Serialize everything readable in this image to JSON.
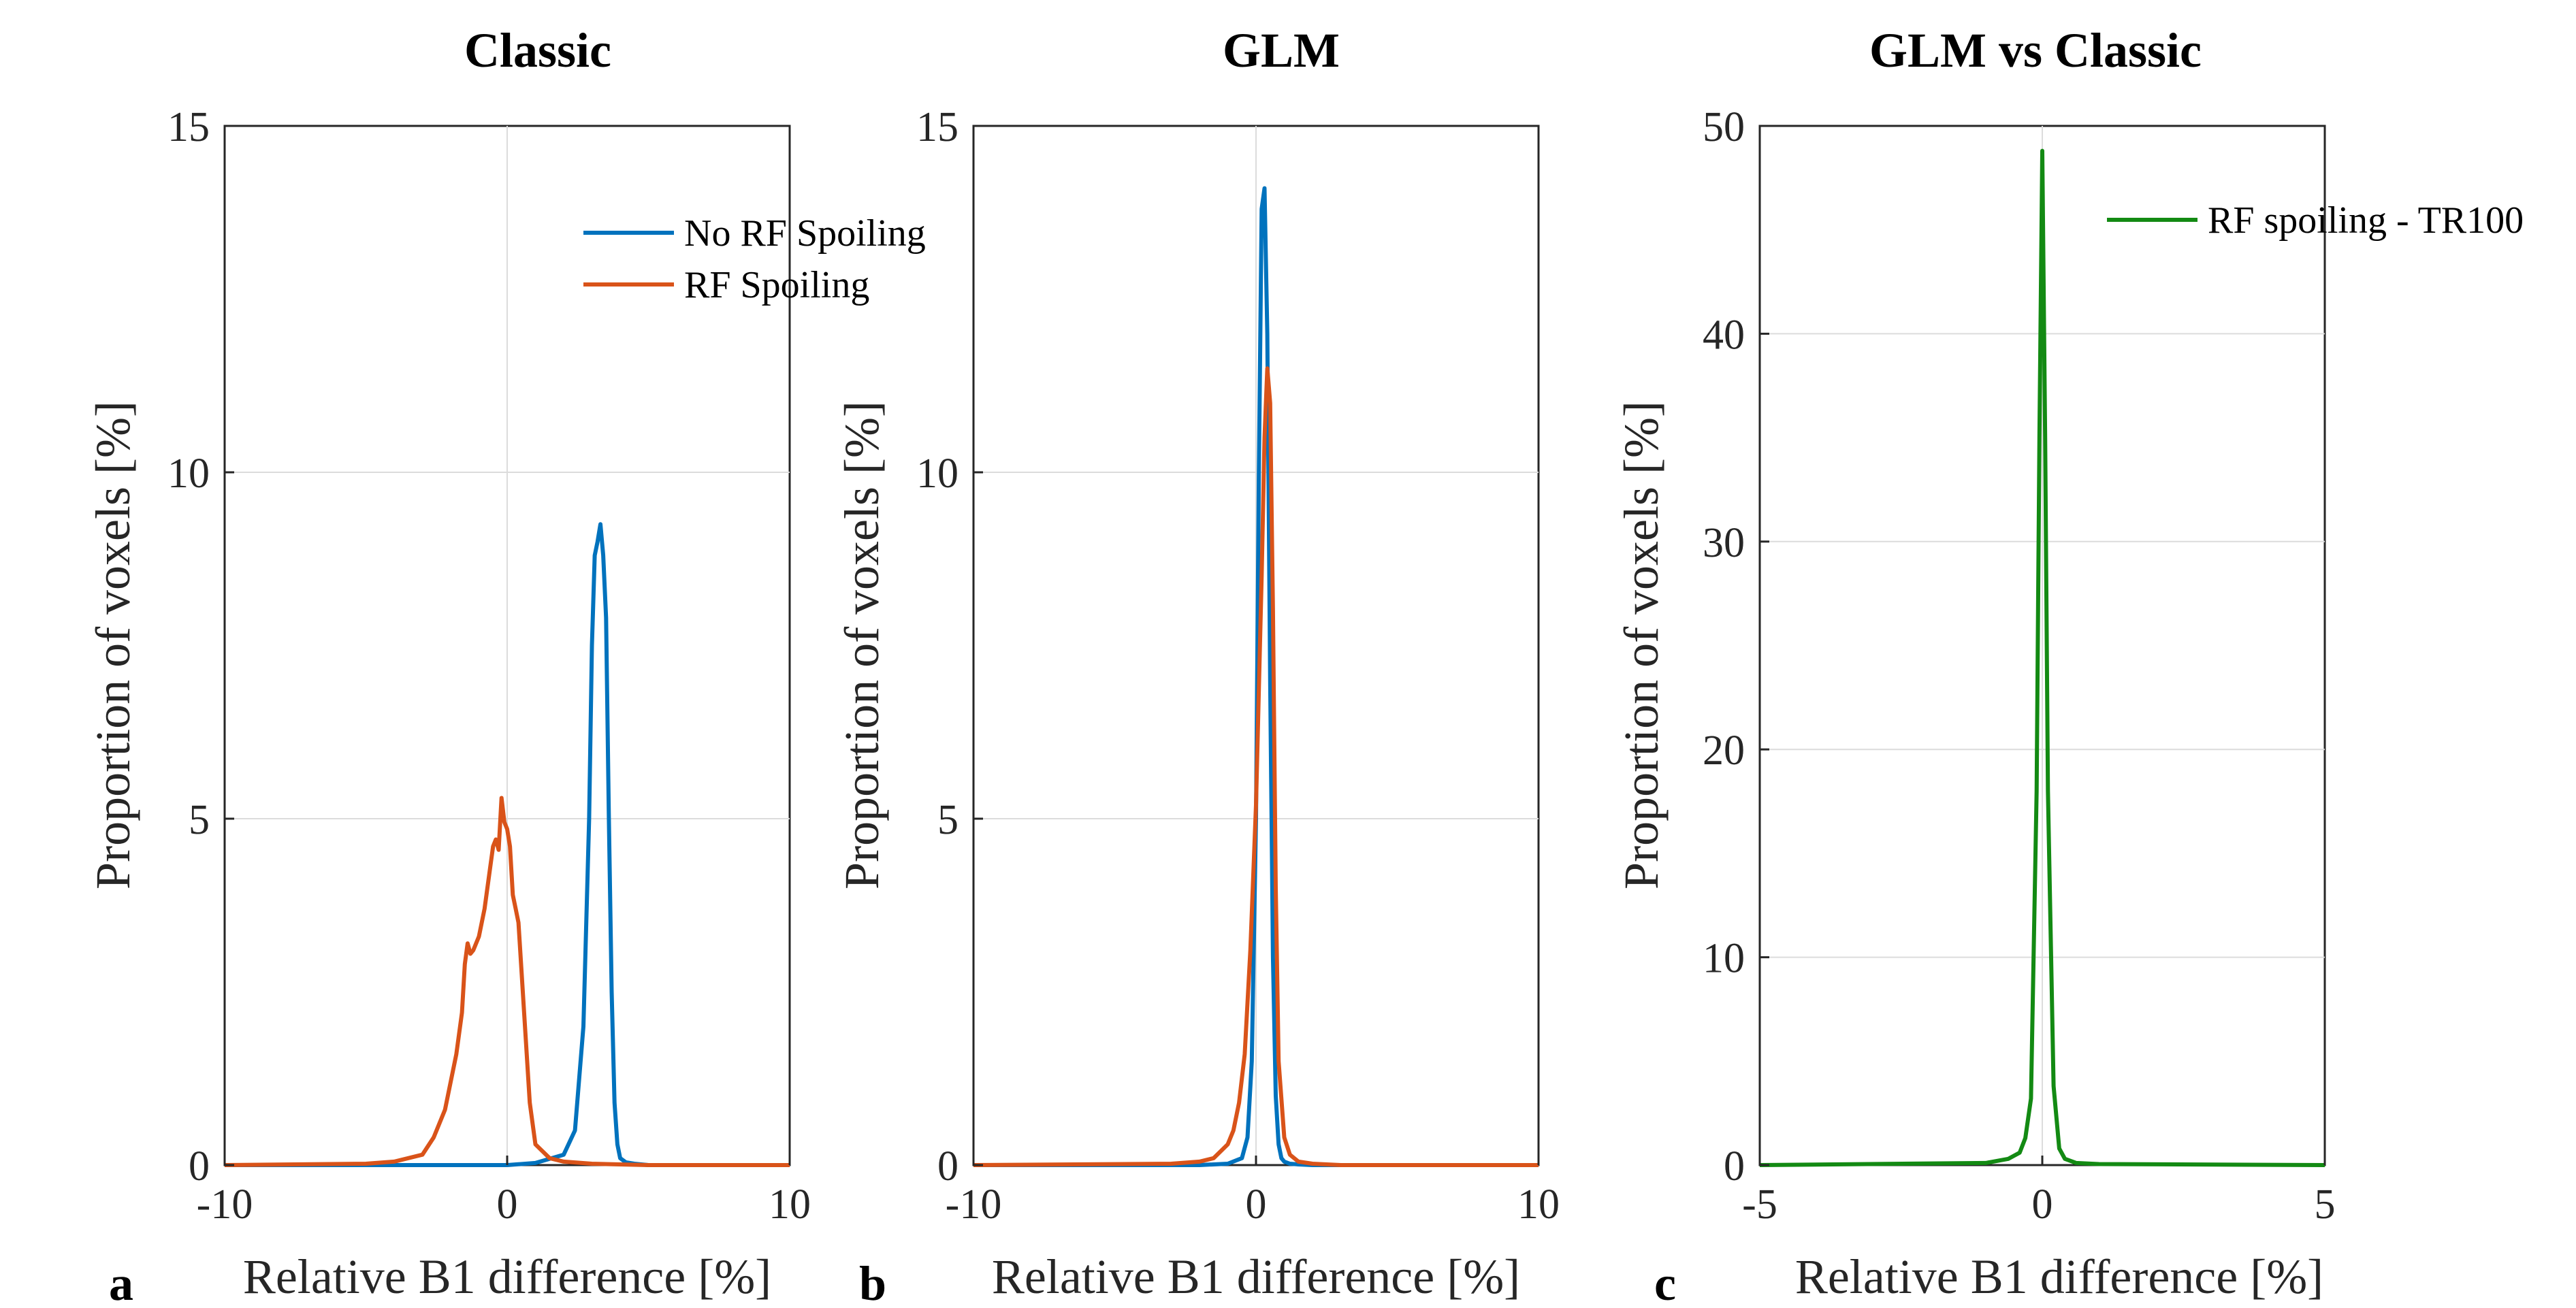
{
  "chart_data": [
    {
      "type": "line",
      "panel": "a",
      "title": "Classic",
      "xlabel": "Relative B1 difference [%]",
      "ylabel": "Proportion of voxels [%]",
      "xlim": [
        -10,
        10
      ],
      "ylim": [
        0,
        15
      ],
      "xticks": [
        -10,
        0,
        10
      ],
      "yticks": [
        0,
        5,
        10,
        15
      ],
      "xtick_labels": [
        "-10",
        "0",
        "10"
      ],
      "ytick_labels": [
        "0",
        "5",
        "10",
        "15"
      ],
      "grid": true,
      "legend": "top-right",
      "series": [
        {
          "name": "No RF Spoiling",
          "color": "#0072BD",
          "x": [
            -10,
            -2,
            0,
            1,
            2,
            2.4,
            2.7,
            2.9,
            3.0,
            3.1,
            3.2,
            3.3,
            3.4,
            3.5,
            3.6,
            3.7,
            3.8,
            3.9,
            4.0,
            4.2,
            4.5,
            5,
            10
          ],
          "y": [
            0,
            0,
            0,
            0.03,
            0.15,
            0.5,
            2.0,
            5.0,
            7.5,
            8.8,
            9.0,
            9.25,
            8.8,
            7.9,
            5.0,
            2.5,
            0.9,
            0.3,
            0.1,
            0.04,
            0.02,
            0,
            0
          ]
        },
        {
          "name": "RF Spoiling",
          "color": "#D95319",
          "x": [
            -10,
            -5,
            -4,
            -3,
            -2.6,
            -2.2,
            -2.0,
            -1.8,
            -1.6,
            -1.5,
            -1.4,
            -1.3,
            -1.2,
            -1.0,
            -0.8,
            -0.6,
            -0.5,
            -0.4,
            -0.3,
            -0.2,
            -0.1,
            0.0,
            0.1,
            0.2,
            0.3,
            0.4,
            0.6,
            0.8,
            1.0,
            1.5,
            2,
            3,
            5,
            10
          ],
          "y": [
            0,
            0.02,
            0.05,
            0.15,
            0.4,
            0.8,
            1.2,
            1.6,
            2.2,
            2.9,
            3.2,
            3.05,
            3.1,
            3.3,
            3.7,
            4.3,
            4.6,
            4.7,
            4.55,
            5.3,
            4.95,
            4.85,
            4.6,
            3.9,
            3.7,
            3.5,
            2.2,
            0.9,
            0.3,
            0.1,
            0.05,
            0.02,
            0,
            0
          ]
        }
      ]
    },
    {
      "type": "line",
      "panel": "b",
      "title": "GLM",
      "xlabel": "Relative B1 difference [%]",
      "ylabel": "Proportion of voxels [%]",
      "xlim": [
        -10,
        10
      ],
      "ylim": [
        0,
        15
      ],
      "xticks": [
        -10,
        0,
        10
      ],
      "yticks": [
        0,
        5,
        10,
        15
      ],
      "xtick_labels": [
        "-10",
        "0",
        "10"
      ],
      "ytick_labels": [
        "0",
        "5",
        "10",
        "15"
      ],
      "grid": true,
      "series": [
        {
          "name": "No RF Spoiling",
          "color": "#0072BD",
          "x": [
            -10,
            -2,
            -1,
            -0.5,
            -0.3,
            -0.15,
            0,
            0.1,
            0.2,
            0.3,
            0.4,
            0.5,
            0.6,
            0.7,
            0.8,
            0.9,
            1.0,
            1.2,
            1.5,
            2,
            10
          ],
          "y": [
            0,
            0,
            0.02,
            0.1,
            0.4,
            1.5,
            5.0,
            10.0,
            13.8,
            14.1,
            12.0,
            7.0,
            3.0,
            1.0,
            0.3,
            0.1,
            0.05,
            0.02,
            0.01,
            0,
            0
          ]
        },
        {
          "name": "RF Spoiling",
          "color": "#D95319",
          "x": [
            -10,
            -3,
            -2,
            -1.5,
            -1.0,
            -0.8,
            -0.6,
            -0.4,
            -0.2,
            0,
            0.2,
            0.3,
            0.4,
            0.5,
            0.6,
            0.7,
            0.8,
            1.0,
            1.2,
            1.5,
            2,
            3,
            10
          ],
          "y": [
            0,
            0.02,
            0.05,
            0.1,
            0.3,
            0.5,
            0.9,
            1.6,
            3.1,
            5.2,
            8.5,
            10.5,
            11.5,
            11.0,
            8.0,
            4.0,
            1.5,
            0.4,
            0.15,
            0.05,
            0.02,
            0,
            0
          ]
        }
      ]
    },
    {
      "type": "line",
      "panel": "c",
      "title": "GLM vs Classic",
      "xlabel": "Relative B1 difference  [%]",
      "ylabel": "Proportion of voxels [%]",
      "xlim": [
        -5,
        5
      ],
      "ylim": [
        0,
        50
      ],
      "xticks": [
        -5,
        0,
        5
      ],
      "yticks": [
        0,
        10,
        20,
        30,
        40,
        50
      ],
      "xtick_labels": [
        "-5",
        "0",
        "5"
      ],
      "ytick_labels": [
        "0",
        "10",
        "20",
        "30",
        "40",
        "50"
      ],
      "grid": true,
      "legend": "top-right",
      "series": [
        {
          "name": "RF spoiling - TR100",
          "color": "#138A13",
          "x": [
            -5,
            -1.0,
            -0.6,
            -0.4,
            -0.3,
            -0.2,
            -0.1,
            -0.05,
            0,
            0.05,
            0.1,
            0.2,
            0.3,
            0.4,
            0.6,
            1.0,
            5
          ],
          "y": [
            0,
            0.1,
            0.3,
            0.6,
            1.3,
            3.2,
            18.0,
            35.0,
            48.8,
            35.0,
            18.0,
            3.8,
            0.8,
            0.3,
            0.1,
            0.05,
            0
          ]
        }
      ]
    }
  ],
  "panel_letters": [
    "a",
    "b",
    "c"
  ]
}
